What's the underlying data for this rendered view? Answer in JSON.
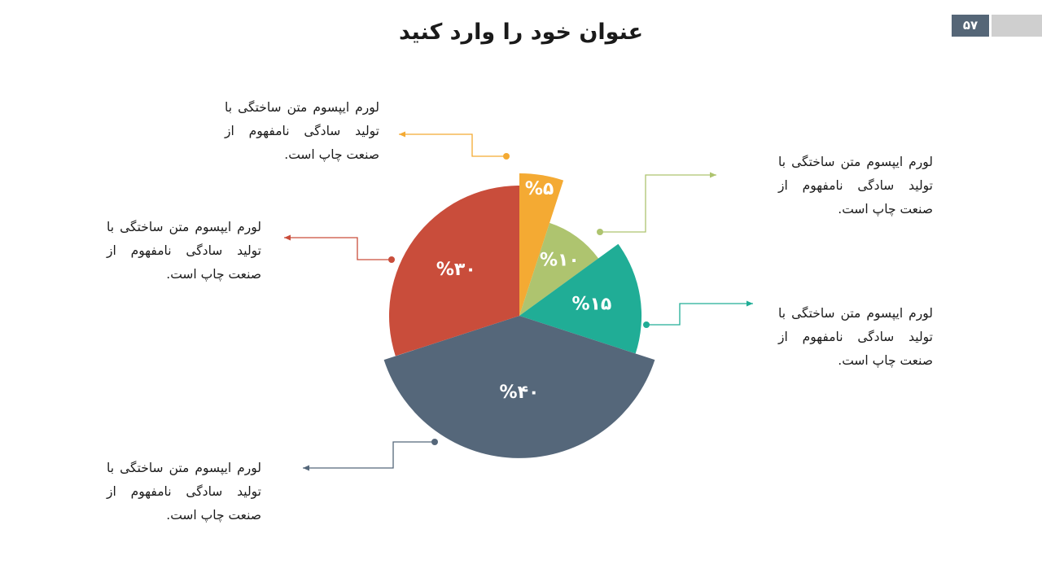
{
  "header": {
    "title": "عنوان خود را وارد کنید",
    "page_number": "۵۷"
  },
  "chart_data": {
    "type": "pie",
    "title": "عنوان خود را وارد کنید",
    "slices": [
      {
        "value": 5,
        "label": "%۵",
        "color": "#F4AA33"
      },
      {
        "value": 10,
        "label": "%۱۰",
        "color": "#AEC46F"
      },
      {
        "value": 15,
        "label": "%۱۵",
        "color": "#20AD96"
      },
      {
        "value": 40,
        "label": "%۴۰",
        "color": "#55677A"
      },
      {
        "value": 30,
        "label": "%۳۰",
        "color": "#C94D3B"
      }
    ]
  },
  "callouts": [
    {
      "text": "لورم ایپسوم متن ساختگی با تولید سادگی نامفهوم از صنعت چاپ است.",
      "color": "#F4AA33"
    },
    {
      "text": "لورم ایپسوم متن ساختگی با تولید سادگی نامفهوم از صنعت چاپ است.",
      "color": "#AEC46F"
    },
    {
      "text": "لورم ایپسوم متن ساختگی با تولید سادگی نامفهوم از صنعت چاپ است.",
      "color": "#20AD96"
    },
    {
      "text": "لورم ایپسوم متن ساختگی با تولید سادگی نامفهوم از صنعت چاپ است.",
      "color": "#55677A"
    },
    {
      "text": "لورم ایپسوم متن ساختگی با تولید سادگی نامفهوم از صنعت چاپ است.",
      "color": "#C94D3B"
    }
  ]
}
